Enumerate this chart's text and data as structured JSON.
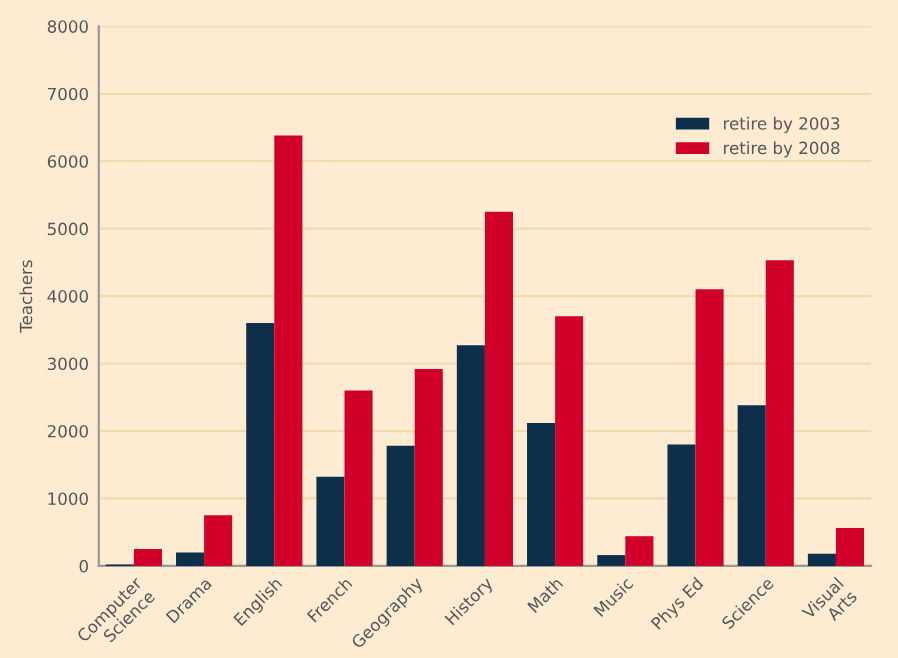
{
  "chart_data": {
    "type": "bar",
    "ylabel": "Teachers",
    "categories": [
      "Computer\nScience",
      "Drama",
      "English",
      "French",
      "Geography",
      "History",
      "Math",
      "Music",
      "Phys Ed",
      "Science",
      "Visual\nArts"
    ],
    "series": [
      {
        "name": "retire by 2003",
        "color": "#0d2f4a",
        "values": [
          20,
          200,
          3600,
          1320,
          1780,
          3270,
          2120,
          160,
          1800,
          2380,
          180
        ]
      },
      {
        "name": "retire by 2008",
        "color": "#d0002a",
        "values": [
          250,
          750,
          6380,
          2600,
          2920,
          5250,
          3700,
          440,
          4100,
          4530,
          560
        ]
      }
    ],
    "ylim": [
      0,
      8000
    ],
    "yticks": [
      0,
      1000,
      2000,
      3000,
      4000,
      5000,
      6000,
      7000,
      8000
    ],
    "grid": "y",
    "legend": "top right"
  }
}
